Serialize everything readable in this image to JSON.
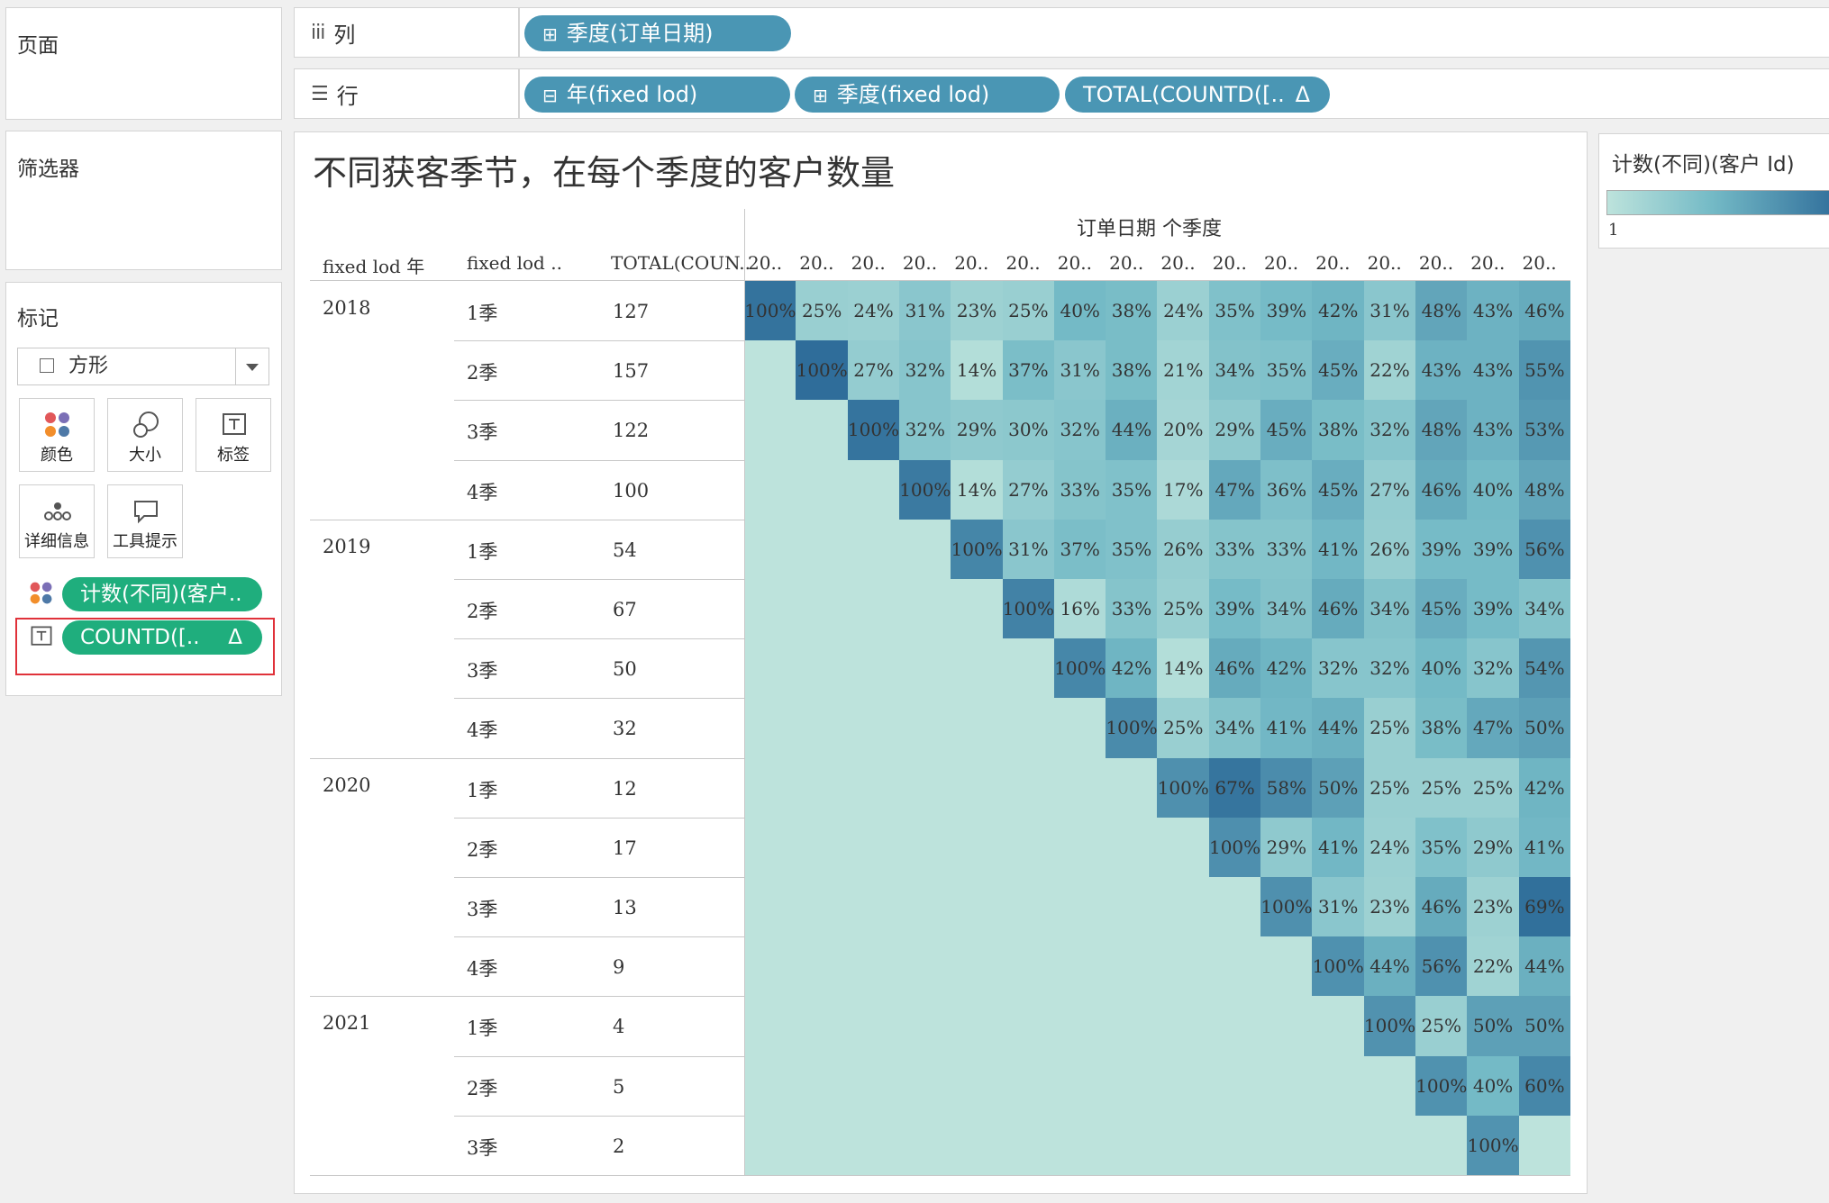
{
  "panels": {
    "pages_title": "页面",
    "filters_title": "筛选器",
    "marks_title": "标记"
  },
  "shelves": {
    "columns": {
      "icon": "iii",
      "label": "列",
      "pills": [
        {
          "prefix": "⊞",
          "text": "季度(订单日期)"
        }
      ]
    },
    "rows": {
      "icon": "☰",
      "label": "行",
      "pills": [
        {
          "prefix": "⊟",
          "text": "年(fixed lod)"
        },
        {
          "prefix": "⊞",
          "text": "季度(fixed lod)"
        },
        {
          "prefix": "",
          "text": "TOTAL(COUNTD([..",
          "delta": "Δ"
        }
      ]
    }
  },
  "marks": {
    "mark_type": "方形",
    "buttons": [
      {
        "label": "颜色",
        "icon": "color-icon"
      },
      {
        "label": "大小",
        "icon": "size-icon"
      },
      {
        "label": "标签",
        "icon": "label-icon"
      },
      {
        "label": "详细信息",
        "icon": "detail-icon"
      },
      {
        "label": "工具提示",
        "icon": "tooltip-icon"
      }
    ],
    "fields": [
      {
        "icon": "color-icon",
        "text": "计数(不同)(客户.."
      },
      {
        "icon": "label-icon",
        "text": "COUNTD([..",
        "delta": "Δ"
      }
    ]
  },
  "legend": {
    "title": "计数(不同)(客户 Id)",
    "min_label": "1",
    "colors": [
      "#bde3dc",
      "#74bac6",
      "#2f6d9a"
    ]
  },
  "viz": {
    "title": "不同获客季节，在每个季度的客户数量",
    "column_header": "订单日期 个季度",
    "row_headers": [
      "fixed lod 年",
      "fixed lod ..",
      "TOTAL(COUN.."
    ],
    "column_labels": [
      "20..",
      "20..",
      "20..",
      "20..",
      "20..",
      "20..",
      "20..",
      "20..",
      "20..",
      "20..",
      "20..",
      "20..",
      "20..",
      "20..",
      "20..",
      "20.."
    ]
  },
  "chart_data": {
    "type": "heatmap",
    "title": "不同获客季节，在每个季度的客户数量",
    "xlabel": "订单日期 个季度",
    "years": [
      {
        "year": "2018",
        "rows": [
          {
            "q": "1季",
            "total": "127",
            "start": 0,
            "values": [
              "100%",
              "25%",
              "24%",
              "31%",
              "23%",
              "25%",
              "40%",
              "38%",
              "24%",
              "35%",
              "39%",
              "42%",
              "31%",
              "48%",
              "43%",
              "46%"
            ]
          },
          {
            "q": "2季",
            "total": "157",
            "start": 1,
            "values": [
              "100%",
              "27%",
              "32%",
              "14%",
              "37%",
              "31%",
              "38%",
              "21%",
              "34%",
              "35%",
              "45%",
              "22%",
              "43%",
              "43%",
              "55%"
            ]
          },
          {
            "q": "3季",
            "total": "122",
            "start": 2,
            "values": [
              "100%",
              "32%",
              "29%",
              "30%",
              "32%",
              "44%",
              "20%",
              "29%",
              "45%",
              "38%",
              "32%",
              "48%",
              "43%",
              "53%"
            ]
          },
          {
            "q": "4季",
            "total": "100",
            "start": 3,
            "values": [
              "100%",
              "14%",
              "27%",
              "33%",
              "35%",
              "17%",
              "47%",
              "36%",
              "45%",
              "27%",
              "46%",
              "40%",
              "48%"
            ]
          }
        ]
      },
      {
        "year": "2019",
        "rows": [
          {
            "q": "1季",
            "total": "54",
            "start": 4,
            "values": [
              "100%",
              "31%",
              "37%",
              "35%",
              "26%",
              "33%",
              "33%",
              "41%",
              "26%",
              "39%",
              "39%",
              "56%"
            ]
          },
          {
            "q": "2季",
            "total": "67",
            "start": 5,
            "values": [
              "100%",
              "16%",
              "33%",
              "25%",
              "39%",
              "34%",
              "46%",
              "34%",
              "45%",
              "39%",
              "34%"
            ]
          },
          {
            "q": "3季",
            "total": "50",
            "start": 6,
            "values": [
              "100%",
              "42%",
              "14%",
              "46%",
              "42%",
              "32%",
              "32%",
              "40%",
              "32%",
              "54%"
            ]
          },
          {
            "q": "4季",
            "total": "32",
            "start": 7,
            "values": [
              "100%",
              "25%",
              "34%",
              "41%",
              "44%",
              "25%",
              "38%",
              "47%",
              "50%"
            ]
          }
        ]
      },
      {
        "year": "2020",
        "rows": [
          {
            "q": "1季",
            "total": "12",
            "start": 8,
            "values": [
              "100%",
              "67%",
              "58%",
              "50%",
              "25%",
              "25%",
              "25%",
              "42%"
            ]
          },
          {
            "q": "2季",
            "total": "17",
            "start": 9,
            "values": [
              "100%",
              "29%",
              "41%",
              "24%",
              "35%",
              "29%",
              "41%"
            ]
          },
          {
            "q": "3季",
            "total": "13",
            "start": 10,
            "values": [
              "100%",
              "31%",
              "23%",
              "46%",
              "23%",
              "69%"
            ]
          },
          {
            "q": "4季",
            "total": "9",
            "start": 11,
            "values": [
              "100%",
              "44%",
              "56%",
              "22%",
              "44%"
            ]
          }
        ]
      },
      {
        "year": "2021",
        "rows": [
          {
            "q": "1季",
            "total": "4",
            "start": 12,
            "values": [
              "100%",
              "25%",
              "50%",
              "50%"
            ]
          },
          {
            "q": "2季",
            "total": "5",
            "start": 13,
            "values": [
              "100%",
              "40%",
              "60%"
            ]
          },
          {
            "q": "3季",
            "total": "2",
            "start": 14,
            "values": [
              "100%"
            ]
          }
        ]
      }
    ]
  }
}
